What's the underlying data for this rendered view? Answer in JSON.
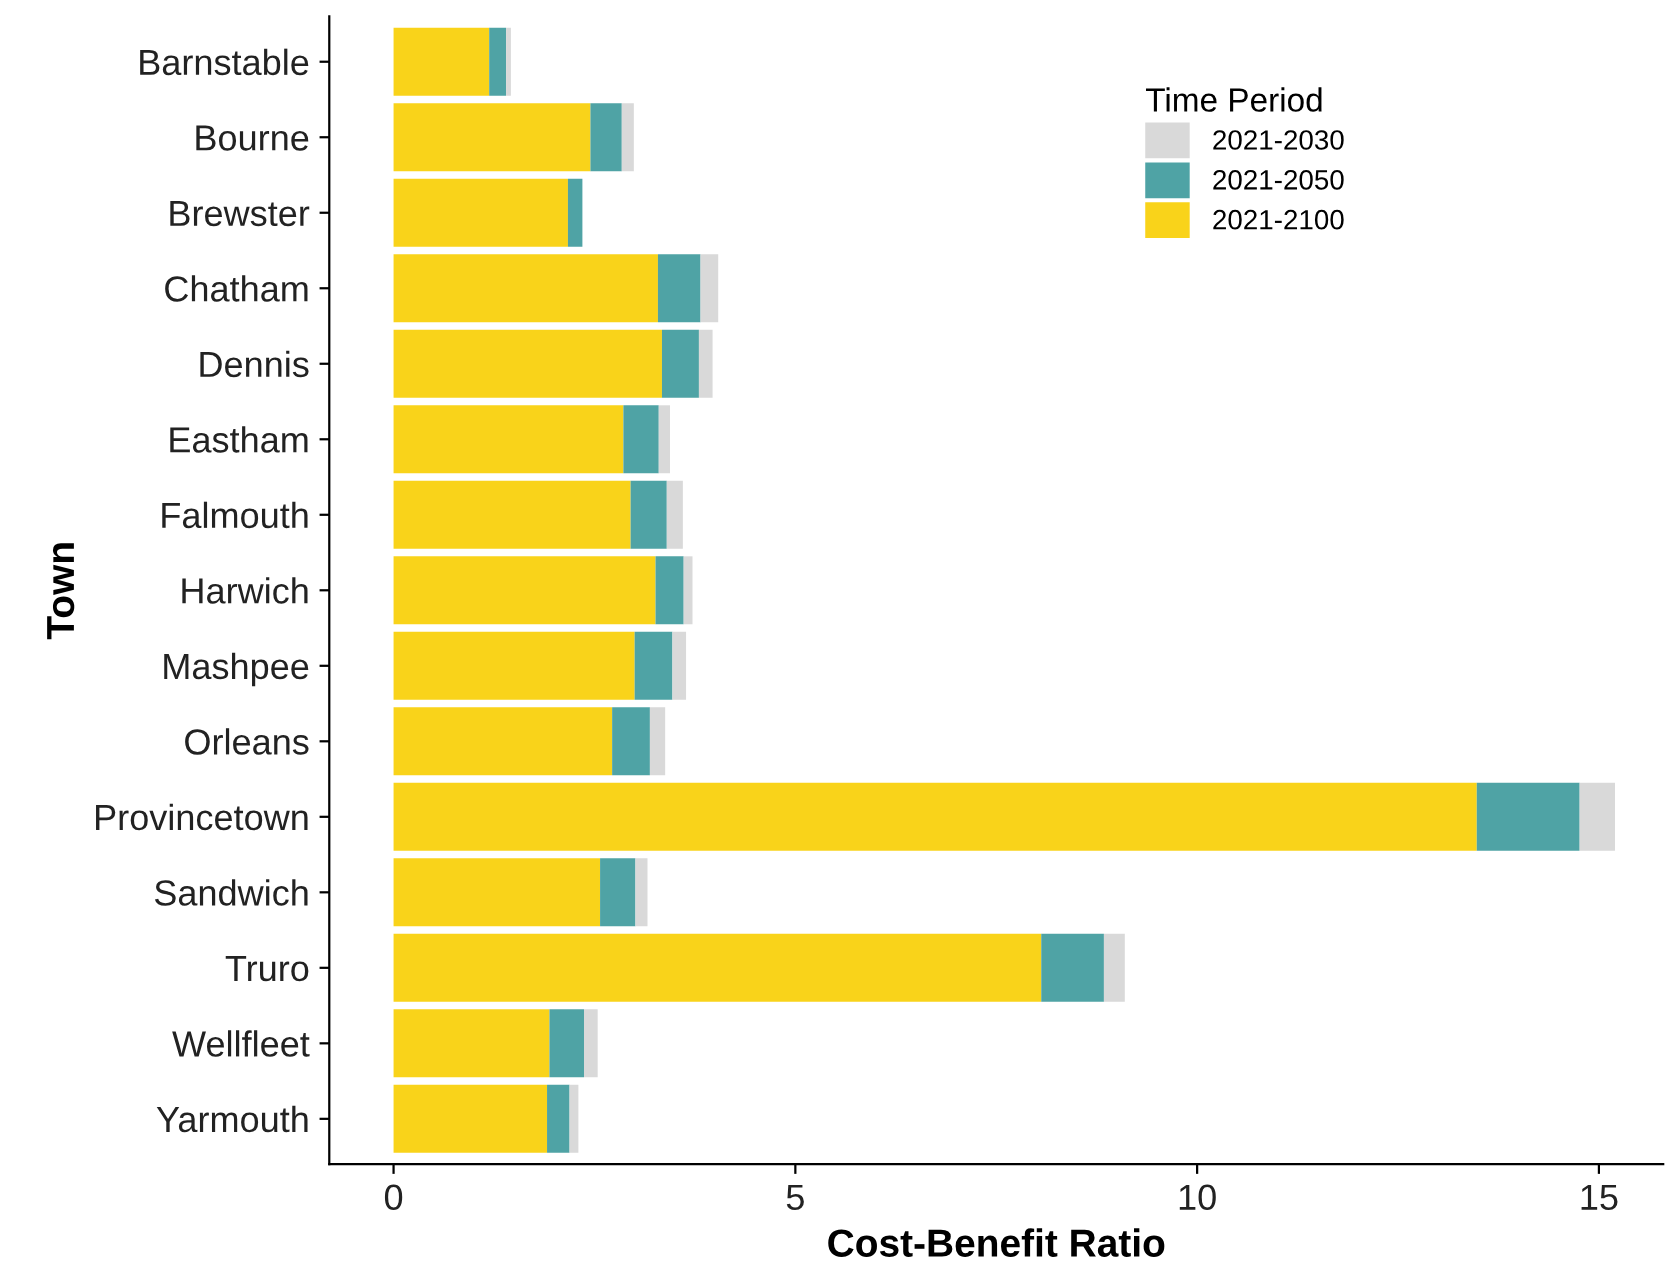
{
  "chart_data": {
    "type": "bar",
    "orientation": "horizontal",
    "stacked": true,
    "xlabel": "Cost-Benefit Ratio",
    "ylabel": "Town",
    "legend_title": "Time Period",
    "legend": "top right",
    "grid": false,
    "categories": [
      "Barnstable",
      "Bourne",
      "Brewster",
      "Chatham",
      "Dennis",
      "Eastham",
      "Falmouth",
      "Harwich",
      "Mashpee",
      "Orleans",
      "Provincetown",
      "Sandwich",
      "Truro",
      "Wellfleet",
      "Yarmouth"
    ],
    "xlim": [
      -0.8,
      15.8
    ],
    "xticks": [
      0,
      5,
      10,
      15
    ],
    "series": [
      {
        "name": "2021-2100",
        "color": "#f9d31a",
        "values": [
          1.19,
          2.45,
          2.17,
          3.29,
          3.34,
          2.86,
          2.95,
          3.26,
          3.0,
          2.72,
          13.48,
          2.57,
          8.06,
          1.94,
          1.91
        ]
      },
      {
        "name": "2021-2050",
        "color": "#4fa3a5",
        "values": [
          0.21,
          0.39,
          0.18,
          0.53,
          0.46,
          0.44,
          0.45,
          0.35,
          0.47,
          0.47,
          1.28,
          0.44,
          0.78,
          0.43,
          0.28
        ]
      },
      {
        "name": "2021-2030",
        "color": "#d9d9d9",
        "values": [
          0.06,
          0.15,
          null,
          0.22,
          0.17,
          0.14,
          0.2,
          0.11,
          0.17,
          0.19,
          0.44,
          0.15,
          0.26,
          0.17,
          0.11
        ]
      }
    ]
  }
}
